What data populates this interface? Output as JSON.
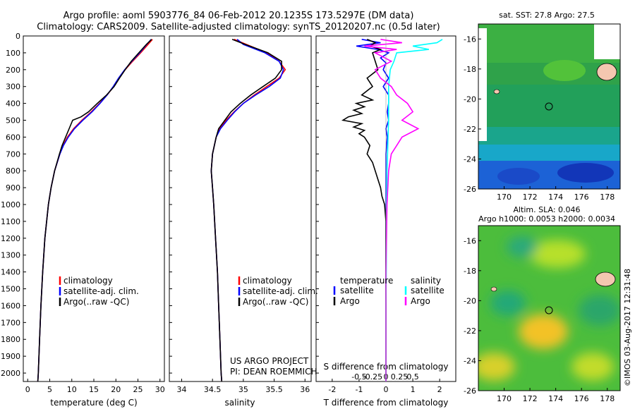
{
  "header": {
    "line1": "Argo profile: aoml 5903776_84 06-Feb-2012 20.1235S 173.5297E (DM data)",
    "line2": "Climatology: CARS2009. Satellite-adjusted climatology: synTS_20120207.nc (0.5d later)"
  },
  "watermark": "©IMOS 03-Aug-2017 12:31:48",
  "colors": {
    "climatology": "#ff0000",
    "satellite": "#0000ff",
    "argo": "#000000",
    "sal_satellite": "#00ffff",
    "sal_argo": "#ff00ff"
  },
  "chart_data": [
    {
      "type": "line",
      "id": "temperature",
      "xlabel": "temperature (deg C)",
      "ylabel": "",
      "xlim": [
        -1,
        31
      ],
      "ylim": [
        2050,
        0
      ],
      "xticks": [
        0,
        5,
        10,
        15,
        20,
        25,
        30
      ],
      "yticks": [
        0,
        100,
        200,
        300,
        400,
        500,
        600,
        700,
        800,
        900,
        1000,
        1100,
        1200,
        1300,
        1400,
        1500,
        1600,
        1700,
        1800,
        1900,
        2000
      ],
      "legend": [
        "climatology",
        "satellite-adj. clim.",
        "Argo(..raw -QC)"
      ],
      "series": [
        {
          "name": "climatology",
          "color": "#ff0000",
          "depth": [
            20,
            50,
            100,
            150,
            200,
            250,
            300,
            350,
            400,
            450,
            500,
            550,
            600,
            650,
            700,
            800,
            900,
            1000,
            1200,
            1400,
            1600,
            1800,
            2000,
            2050
          ],
          "values": [
            28.3,
            27.3,
            25.6,
            23.8,
            22.1,
            20.7,
            19.5,
            18.0,
            16.3,
            14.4,
            12.3,
            10.4,
            9.0,
            8.0,
            7.3,
            6.1,
            5.3,
            4.7,
            3.9,
            3.4,
            3.0,
            2.7,
            2.4,
            2.3
          ]
        },
        {
          "name": "satellite-adj. clim.",
          "color": "#0000ff",
          "depth": [
            20,
            50,
            100,
            150,
            200,
            250,
            300,
            350,
            400,
            450,
            500,
            550,
            600,
            650,
            700,
            800,
            900,
            1000,
            1200,
            1400,
            1600,
            1800,
            2000,
            2050
          ],
          "values": [
            28.0,
            27.0,
            25.4,
            23.6,
            22.0,
            20.6,
            19.4,
            18.0,
            16.4,
            14.6,
            12.5,
            10.6,
            9.2,
            8.1,
            7.3,
            6.1,
            5.3,
            4.7,
            3.9,
            3.4,
            3.0,
            2.7,
            2.4,
            2.3
          ]
        },
        {
          "name": "Argo(..raw -QC)",
          "color": "#000000",
          "depth": [
            20,
            50,
            100,
            150,
            200,
            250,
            300,
            350,
            400,
            450,
            480,
            500,
            550,
            600,
            650,
            700,
            800,
            900,
            1000,
            1200,
            1400,
            1600,
            1800,
            2000,
            2050
          ],
          "values": [
            28.1,
            26.9,
            25.2,
            23.5,
            22.1,
            20.8,
            19.6,
            17.9,
            15.8,
            13.8,
            12.1,
            10.2,
            9.4,
            8.6,
            7.8,
            7.2,
            6.1,
            5.3,
            4.7,
            3.9,
            3.4,
            3.0,
            2.7,
            2.4,
            2.3
          ]
        }
      ]
    },
    {
      "type": "line",
      "id": "salinity",
      "xlabel": "salinity",
      "xlim": [
        33.8,
        36.1
      ],
      "ylim": [
        2050,
        0
      ],
      "xticks": [
        34,
        34.5,
        35,
        35.5,
        36
      ],
      "xticklabels": [
        "34",
        "34.5",
        "35",
        "35.5",
        "36"
      ],
      "legend": [
        "climatology",
        "satellite-adj. clim.",
        "Argo(..raw -QC)"
      ],
      "series": [
        {
          "name": "climatology",
          "color": "#ff0000",
          "depth": [
            20,
            50,
            100,
            150,
            200,
            250,
            300,
            350,
            400,
            450,
            500,
            550,
            600,
            700,
            800,
            900,
            1000,
            1200,
            1400,
            1600,
            1800,
            2000,
            2050
          ],
          "values": [
            34.85,
            35.05,
            35.38,
            35.58,
            35.68,
            35.58,
            35.38,
            35.18,
            35.0,
            34.85,
            34.72,
            34.62,
            34.56,
            34.5,
            34.48,
            34.5,
            34.52,
            34.55,
            34.58,
            34.6,
            34.62,
            34.64,
            34.65
          ]
        },
        {
          "name": "satellite-adj. clim.",
          "color": "#0000ff",
          "depth": [
            20,
            50,
            100,
            150,
            200,
            250,
            300,
            350,
            400,
            450,
            500,
            550,
            600,
            700,
            800,
            900,
            1000,
            1200,
            1400,
            1600,
            1800,
            2000,
            2050
          ],
          "values": [
            34.9,
            35.0,
            35.35,
            35.58,
            35.65,
            35.6,
            35.42,
            35.2,
            35.0,
            34.86,
            34.74,
            34.63,
            34.56,
            34.5,
            34.48,
            34.5,
            34.52,
            34.55,
            34.58,
            34.6,
            34.62,
            34.64,
            34.65
          ]
        },
        {
          "name": "Argo(..raw -QC)",
          "color": "#000000",
          "depth": [
            20,
            50,
            100,
            150,
            200,
            250,
            300,
            350,
            400,
            450,
            500,
            550,
            600,
            700,
            800,
            900,
            1000,
            1200,
            1400,
            1600,
            1800,
            2000,
            2050
          ],
          "values": [
            34.82,
            35.03,
            35.4,
            35.62,
            35.62,
            35.52,
            35.32,
            35.12,
            34.95,
            34.8,
            34.7,
            34.6,
            34.56,
            34.5,
            34.48,
            34.5,
            34.52,
            34.55,
            34.58,
            34.6,
            34.62,
            34.64,
            34.65
          ]
        }
      ]
    },
    {
      "type": "line",
      "id": "difference",
      "xlabel": "T difference from climatology",
      "xlabel_top": "S difference from climatology",
      "xlim": [
        -2.6,
        2.6
      ],
      "ylim": [
        2050,
        0
      ],
      "xticks": [
        -2,
        -1,
        0,
        1,
        2
      ],
      "sticks": [
        -0.5,
        -0.25,
        0,
        0.25,
        0.5
      ],
      "sticklabels": [
        "-0.5",
        "-0.25",
        "0",
        "0.25",
        "0.5"
      ],
      "legend_left_title": "temperature",
      "legend_right_title": "salinity",
      "legend_left": [
        "satellite",
        "Argo"
      ],
      "legend_right": [
        "satellite",
        "Argo"
      ],
      "series": [
        {
          "name": "T satellite",
          "color": "#0000ff",
          "depth": [
            20,
            40,
            60,
            80,
            100,
            130,
            160,
            200,
            250,
            300,
            350,
            400,
            450,
            500,
            550,
            600,
            700,
            800,
            1000,
            1400,
            2000,
            2050
          ],
          "values": [
            -0.9,
            -0.2,
            -1.1,
            -0.3,
            0.1,
            -0.2,
            0.0,
            -0.1,
            0.1,
            -0.1,
            0.1,
            0.1,
            0.05,
            0.1,
            0.0,
            0.05,
            0.0,
            0.0,
            0.0,
            0.0,
            0.0,
            0.0
          ]
        },
        {
          "name": "T Argo",
          "color": "#000000",
          "depth": [
            20,
            40,
            60,
            80,
            100,
            150,
            200,
            250,
            300,
            350,
            380,
            400,
            420,
            440,
            460,
            480,
            500,
            520,
            540,
            560,
            580,
            600,
            650,
            700,
            750,
            800,
            850,
            900,
            950,
            1000,
            1100,
            1400,
            2000,
            2050
          ],
          "values": [
            -0.7,
            -0.4,
            -0.6,
            -0.2,
            -0.5,
            -0.4,
            -0.3,
            -0.7,
            -0.5,
            -0.9,
            -0.5,
            -1.1,
            -0.8,
            -1.2,
            -0.9,
            -1.4,
            -1.6,
            -0.9,
            -1.2,
            -0.8,
            -1.0,
            -0.8,
            -0.6,
            -0.7,
            -0.5,
            -0.4,
            -0.3,
            -0.2,
            -0.15,
            -0.05,
            0.0,
            0.0,
            0.0,
            0.0
          ]
        },
        {
          "name": "S satellite",
          "color": "#00ffff",
          "depth": [
            20,
            40,
            60,
            80,
            100,
            150,
            200,
            300,
            400,
            500,
            600,
            700,
            800,
            900,
            1000,
            1200,
            1600,
            2000,
            2050
          ],
          "values": [
            1.05,
            0.95,
            0.5,
            0.8,
            0.2,
            0.15,
            0.08,
            0.05,
            0.05,
            0.05,
            0.04,
            0.03,
            0.02,
            0.02,
            0.01,
            0.01,
            0.0,
            0.0,
            0.0
          ]
        },
        {
          "name": "S Argo",
          "color": "#ff00ff",
          "depth": [
            20,
            40,
            60,
            80,
            100,
            150,
            200,
            250,
            300,
            350,
            400,
            450,
            500,
            550,
            600,
            650,
            700,
            800,
            1000,
            1400,
            2000,
            2050
          ],
          "values": [
            -0.1,
            0.3,
            -0.4,
            0.2,
            -0.2,
            0.1,
            -0.2,
            -0.1,
            0.1,
            0.2,
            0.4,
            0.5,
            0.3,
            0.6,
            0.3,
            0.2,
            0.1,
            0.05,
            0.02,
            0.0,
            0.0,
            0.0
          ]
        }
      ]
    },
    {
      "type": "heatmap",
      "id": "sst_map",
      "title": "sat. SST: 27.8 Argo: 27.5",
      "xlim": [
        168,
        179
      ],
      "ylim": [
        -26,
        -15
      ],
      "xticks": [
        170,
        172,
        174,
        176,
        178
      ],
      "yticks": [
        -16,
        -18,
        -20,
        -22,
        -24,
        -26
      ],
      "marker": [
        173.53,
        -20.12
      ]
    },
    {
      "type": "heatmap",
      "id": "sla_map",
      "title": "Altim. SLA: 0.046",
      "subtitle": "Argo h1000: 0.0053 h2000: 0.0034",
      "xlim": [
        168,
        179
      ],
      "ylim": [
        -26,
        -15
      ],
      "xticks": [
        170,
        172,
        174,
        176,
        178
      ],
      "yticks": [
        -16,
        -18,
        -20,
        -22,
        -24,
        -26
      ],
      "marker": [
        173.53,
        -20.12
      ]
    }
  ],
  "credits": {
    "line1": "US ARGO PROJECT",
    "line2": "PI: DEAN ROEMMICH"
  }
}
